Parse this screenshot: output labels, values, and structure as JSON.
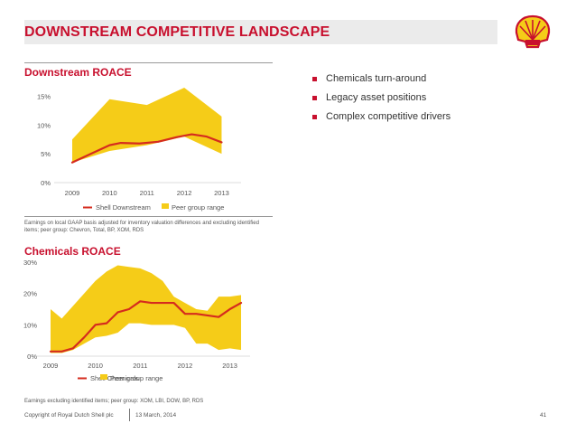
{
  "header": {
    "title": "DOWNSTREAM COMPETITIVE LANDSCAPE"
  },
  "bullets": [
    "Chemicals turn-around",
    "Legacy asset positions",
    "Complex competitive drivers"
  ],
  "footer": {
    "copyright": "Copyright of Royal Dutch Shell plc",
    "date": "13 March, 2014",
    "page": "41"
  },
  "colors": {
    "accent": "#c8102e",
    "band": "#f5cc18",
    "line": "#d52b1e"
  },
  "chart_data": [
    {
      "type": "area",
      "title": "Downstream ROACE",
      "x_ticks": [
        "2009",
        "2010",
        "2011",
        "2012",
        "2013"
      ],
      "y_ticks": [
        "0%",
        "5%",
        "10%",
        "15%"
      ],
      "ylim": [
        0,
        16.5
      ],
      "xlim": [
        2009,
        2013.4
      ],
      "legend": {
        "line_label": "Shell Downstream",
        "band_label": "Peer group range",
        "placement": "bottom"
      },
      "band_upper": [
        [
          2009,
          7.5
        ],
        [
          2010,
          14.5
        ],
        [
          2011,
          13.5
        ],
        [
          2012,
          16.5
        ],
        [
          2013,
          11.5
        ]
      ],
      "band_lower": [
        [
          2009,
          3.5
        ],
        [
          2010,
          5.5
        ],
        [
          2011,
          6.5
        ],
        [
          2012,
          8.0
        ],
        [
          2013,
          5.0
        ]
      ],
      "series": [
        {
          "values": [
            [
              2009,
              3.5
            ],
            [
              2009.5,
              5.0
            ],
            [
              2010,
              6.5
            ],
            [
              2010.3,
              6.9
            ],
            [
              2010.8,
              6.8
            ],
            [
              2011.3,
              7.1
            ],
            [
              2011.8,
              7.9
            ],
            [
              2012.2,
              8.4
            ],
            [
              2012.6,
              8.0
            ],
            [
              2013,
              7.0
            ]
          ]
        }
      ],
      "note": "Earnings on local GAAP basis adjusted for inventory valuation differences and excluding identified items; peer group: Chevron, Total, BP, XOM, RDS"
    },
    {
      "type": "area",
      "title": "Chemicals ROACE",
      "x_ticks": [
        "2009",
        "2010",
        "2011",
        "2012",
        "2013"
      ],
      "y_ticks": [
        "0%",
        "10%",
        "20%",
        "30%"
      ],
      "ylim": [
        0,
        30
      ],
      "xlim": [
        2009,
        2013.35
      ],
      "legend": {
        "line_label": "Shell Chemicals",
        "band_label": "Peer group range",
        "placement": "bottom"
      },
      "band_upper": [
        [
          2009,
          15.0
        ],
        [
          2009.25,
          12.0
        ],
        [
          2009.5,
          16.0
        ],
        [
          2009.75,
          20.0
        ],
        [
          2010,
          24.0
        ],
        [
          2010.25,
          27.0
        ],
        [
          2010.5,
          29.0
        ],
        [
          2010.75,
          28.5
        ],
        [
          2011,
          28.0
        ],
        [
          2011.25,
          26.5
        ],
        [
          2011.5,
          24.0
        ],
        [
          2011.75,
          19.0
        ],
        [
          2012,
          17.0
        ],
        [
          2012.25,
          15.0
        ],
        [
          2012.5,
          14.5
        ],
        [
          2012.75,
          19.0
        ],
        [
          2013,
          19.0
        ],
        [
          2013.25,
          19.5
        ]
      ],
      "band_lower": [
        [
          2009,
          1.0
        ],
        [
          2009.25,
          1.0
        ],
        [
          2009.5,
          2.0
        ],
        [
          2009.75,
          4.0
        ],
        [
          2010,
          6.0
        ],
        [
          2010.25,
          6.5
        ],
        [
          2010.5,
          7.5
        ],
        [
          2010.75,
          10.5
        ],
        [
          2011,
          10.5
        ],
        [
          2011.25,
          10.0
        ],
        [
          2011.5,
          10.0
        ],
        [
          2011.75,
          10.0
        ],
        [
          2012,
          9.0
        ],
        [
          2012.25,
          4.0
        ],
        [
          2012.5,
          4.0
        ],
        [
          2012.75,
          2.0
        ],
        [
          2013,
          2.5
        ],
        [
          2013.25,
          2.0
        ]
      ],
      "series": [
        {
          "values": [
            [
              2009,
              1.5
            ],
            [
              2009.25,
              1.5
            ],
            [
              2009.5,
              2.5
            ],
            [
              2009.75,
              6.0
            ],
            [
              2010,
              10.0
            ],
            [
              2010.25,
              10.5
            ],
            [
              2010.5,
              14.0
            ],
            [
              2010.75,
              15.0
            ],
            [
              2011,
              17.5
            ],
            [
              2011.25,
              17.0
            ],
            [
              2011.5,
              17.0
            ],
            [
              2011.75,
              17.0
            ],
            [
              2012,
              13.5
            ],
            [
              2012.25,
              13.5
            ],
            [
              2012.5,
              13.0
            ],
            [
              2012.75,
              12.5
            ],
            [
              2013,
              15.0
            ],
            [
              2013.25,
              17.0
            ]
          ]
        }
      ],
      "note": "Earnings excluding identified items; peer group: XOM, LBI, DOW, BP, RDS"
    }
  ]
}
